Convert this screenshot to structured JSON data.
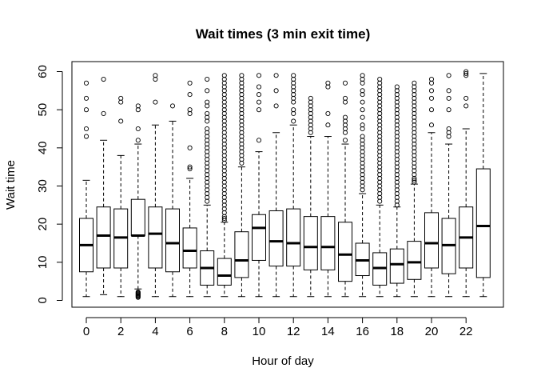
{
  "chart_data": {
    "type": "boxplot",
    "title": "Wait times (3 min exit time)",
    "xlabel": "Hour of day",
    "ylabel": "Wait time",
    "ylim": [
      0,
      61
    ],
    "y_ticks": [
      0,
      10,
      20,
      30,
      40,
      50,
      60
    ],
    "x_tick_labels": [
      "0",
      "2",
      "4",
      "6",
      "8",
      "10",
      "12",
      "14",
      "16",
      "18",
      "20",
      "22"
    ],
    "x_tick_hours": [
      0,
      2,
      4,
      6,
      8,
      10,
      12,
      14,
      16,
      18,
      20,
      22
    ],
    "grid": false,
    "boxes": [
      {
        "hour": 0,
        "whisker_low": 1,
        "q1": 7.5,
        "median": 14.5,
        "q3": 21.5,
        "whisker_high": 31.5,
        "outliers": [
          43,
          45,
          50,
          53,
          57
        ]
      },
      {
        "hour": 1,
        "whisker_low": 1.5,
        "q1": 8.5,
        "median": 17,
        "q3": 24.5,
        "whisker_high": 42,
        "outliers": [
          49,
          58
        ]
      },
      {
        "hour": 2,
        "whisker_low": 1,
        "q1": 8.5,
        "median": 16.5,
        "q3": 24,
        "whisker_high": 38,
        "outliers": [
          47,
          52,
          53
        ]
      },
      {
        "hour": 3,
        "whisker_low": 3,
        "q1": 17,
        "median": 17,
        "q3": 26.5,
        "whisker_high": 41,
        "outliers": [
          0.8,
          1.0,
          1.2,
          1.4,
          1.6,
          1.8,
          2.0,
          2.2,
          42,
          45,
          50,
          51
        ]
      },
      {
        "hour": 4,
        "whisker_low": 1,
        "q1": 8.5,
        "median": 17.5,
        "q3": 24.5,
        "whisker_high": 46,
        "outliers": [
          52,
          58,
          59
        ]
      },
      {
        "hour": 5,
        "whisker_low": 1,
        "q1": 7.5,
        "median": 15,
        "q3": 24,
        "whisker_high": 47,
        "outliers": [
          51
        ]
      },
      {
        "hour": 6,
        "whisker_low": 1,
        "q1": 8.5,
        "median": 13,
        "q3": 19,
        "whisker_high": 32,
        "outliers": [
          34.5,
          35,
          40,
          49,
          50,
          54,
          57
        ]
      },
      {
        "hour": 7,
        "whisker_low": 1,
        "q1": 4,
        "median": 8.5,
        "q3": 13,
        "whisker_high": 25,
        "outliers": [
          26,
          27,
          28,
          29,
          30,
          31,
          32,
          33,
          34,
          35,
          36,
          37,
          38,
          39,
          40,
          41,
          42,
          43,
          44,
          45,
          47,
          48,
          49,
          51,
          52,
          55,
          58
        ]
      },
      {
        "hour": 8,
        "whisker_low": 1,
        "q1": 4,
        "median": 6.5,
        "q3": 11,
        "whisker_high": 20.5,
        "outliers": [
          21,
          21.5,
          22,
          23,
          24,
          25,
          26,
          27,
          28,
          29,
          30,
          31,
          32,
          33,
          34,
          35,
          36,
          37,
          38,
          39,
          40,
          41,
          42,
          43,
          44,
          45,
          46,
          47,
          48,
          49,
          50,
          51,
          52,
          53,
          54,
          55,
          56,
          57,
          58,
          59
        ]
      },
      {
        "hour": 9,
        "whisker_low": 1,
        "q1": 6,
        "median": 10.5,
        "q3": 18,
        "whisker_high": 35,
        "outliers": [
          36,
          37,
          38,
          39,
          40,
          41,
          42,
          43,
          44,
          45,
          46,
          47,
          48,
          49,
          50,
          51,
          52,
          53,
          54,
          55,
          56,
          57,
          58,
          59
        ]
      },
      {
        "hour": 10,
        "whisker_low": 1,
        "q1": 10.5,
        "median": 19,
        "q3": 22.5,
        "whisker_high": 39,
        "outliers": [
          42,
          50,
          52,
          54,
          56,
          59
        ]
      },
      {
        "hour": 11,
        "whisker_low": 1,
        "q1": 9,
        "median": 15.5,
        "q3": 23.5,
        "whisker_high": 44,
        "outliers": [
          51,
          55,
          59
        ]
      },
      {
        "hour": 12,
        "whisker_low": 1,
        "q1": 9,
        "median": 15,
        "q3": 24,
        "whisker_high": 46,
        "outliers": [
          47,
          49,
          50,
          52,
          53,
          54,
          55,
          56,
          57,
          58,
          59
        ]
      },
      {
        "hour": 13,
        "whisker_low": 1,
        "q1": 8,
        "median": 14,
        "q3": 22,
        "whisker_high": 43,
        "outliers": [
          44,
          45,
          46,
          47,
          48,
          49,
          50,
          51,
          52,
          53
        ]
      },
      {
        "hour": 14,
        "whisker_low": 1,
        "q1": 8,
        "median": 14,
        "q3": 22,
        "whisker_high": 43,
        "outliers": [
          46,
          49,
          56,
          57
        ]
      },
      {
        "hour": 15,
        "whisker_low": 1,
        "q1": 5,
        "median": 12,
        "q3": 20.5,
        "whisker_high": 41,
        "outliers": [
          42,
          44,
          45,
          46,
          47,
          48,
          52,
          53,
          57
        ]
      },
      {
        "hour": 16,
        "whisker_low": 1,
        "q1": 6.5,
        "median": 10.5,
        "q3": 15,
        "whisker_high": 28,
        "outliers": [
          29,
          30,
          31,
          32,
          33,
          34,
          35,
          36,
          37,
          38,
          39,
          40,
          41,
          42,
          43,
          45,
          46,
          48,
          50,
          52,
          54,
          55,
          57,
          58,
          59
        ]
      },
      {
        "hour": 17,
        "whisker_low": 1,
        "q1": 4,
        "median": 8.5,
        "q3": 12.5,
        "whisker_high": 25,
        "outliers": [
          26,
          27,
          28,
          29,
          30,
          31,
          32,
          33,
          34,
          35,
          36,
          37,
          38,
          39,
          40,
          41,
          42,
          43,
          44,
          45,
          46,
          47,
          48,
          49,
          50,
          51,
          52,
          53,
          54,
          55,
          56,
          57,
          58
        ]
      },
      {
        "hour": 18,
        "whisker_low": 1,
        "q1": 4.5,
        "median": 9.5,
        "q3": 13.5,
        "whisker_high": 24.5,
        "outliers": [
          25,
          26,
          27,
          28,
          29,
          30,
          31,
          32,
          33,
          34,
          35,
          36,
          37,
          38,
          39,
          40,
          41,
          42,
          43,
          44,
          45,
          46,
          47,
          48,
          49,
          50,
          51,
          52,
          53,
          54,
          55,
          56
        ]
      },
      {
        "hour": 19,
        "whisker_low": 1,
        "q1": 5.5,
        "median": 10,
        "q3": 15.5,
        "whisker_high": 30.5,
        "outliers": [
          31,
          31.5,
          32,
          33,
          34,
          35,
          36,
          37,
          38,
          39,
          40,
          41,
          42,
          43,
          44,
          45,
          46,
          47,
          48,
          49,
          50,
          51,
          52,
          53,
          54,
          55,
          56,
          57
        ]
      },
      {
        "hour": 20,
        "whisker_low": 1,
        "q1": 8.5,
        "median": 15,
        "q3": 23,
        "whisker_high": 44,
        "outliers": [
          46,
          50,
          53,
          55,
          57,
          58
        ]
      },
      {
        "hour": 21,
        "whisker_low": 1,
        "q1": 7,
        "median": 14.5,
        "q3": 21.5,
        "whisker_high": 41,
        "outliers": [
          43,
          44,
          45,
          50,
          53,
          55,
          59
        ]
      },
      {
        "hour": 22,
        "whisker_low": 1,
        "q1": 8.5,
        "median": 16.5,
        "q3": 24.5,
        "whisker_high": 45,
        "outliers": [
          51,
          53,
          59,
          59.5,
          60
        ]
      },
      {
        "hour": 23,
        "whisker_low": 1,
        "q1": 6,
        "median": 19.5,
        "q3": 34.5,
        "whisker_high": 59.5,
        "outliers": []
      }
    ]
  }
}
